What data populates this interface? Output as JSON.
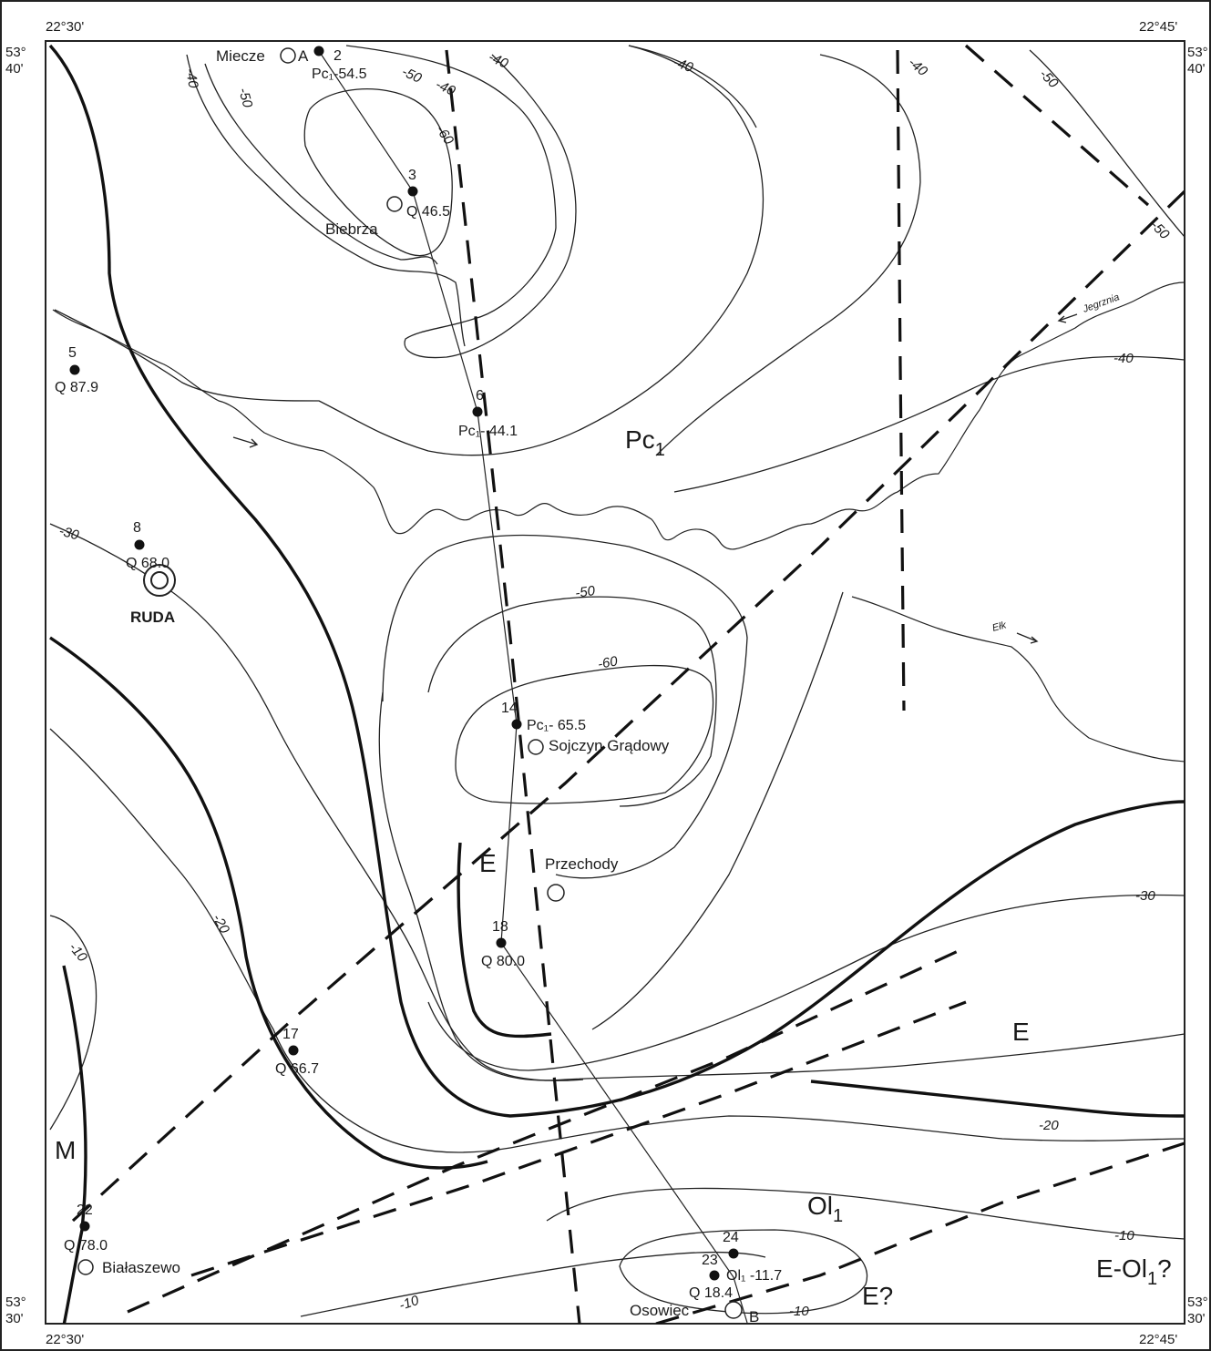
{
  "coords": {
    "top_left_lon": "22°30'",
    "top_right_lon": "22°45'",
    "bottom_left_lon": "22°30'",
    "bottom_right_lon": "22°45'",
    "top_lat_deg": "53°",
    "top_lat_min": "40'",
    "bottom_lat_deg": "53°",
    "bottom_lat_min": "30'"
  },
  "places": {
    "miecze": "Miecze",
    "biebrza": "Biebrza",
    "ruda": "RUDA",
    "sojczyn": "Sojczyn Grądowy",
    "przechody": "Przechody",
    "bialaszewo": "Białaszewo",
    "osowiec": "Osowiec"
  },
  "section_ends": {
    "a": "A",
    "b": "B"
  },
  "boreholes": [
    {
      "num": "2",
      "value": "Pc₁-54.5"
    },
    {
      "num": "3",
      "value": "Q 46.5"
    },
    {
      "num": "5",
      "value": "Q 87.9"
    },
    {
      "num": "6",
      "value": "Pc₁- 44.1"
    },
    {
      "num": "8",
      "value": "Q 68.0"
    },
    {
      "num": "14",
      "value": "Pc₁- 65.5"
    },
    {
      "num": "17",
      "value": "Q 66.7"
    },
    {
      "num": "18",
      "value": "Q 80.0"
    },
    {
      "num": "22",
      "value": "Q 78.0"
    },
    {
      "num": "23",
      "value": "Q 18.4"
    },
    {
      "num": "24",
      "value": "Ol₁ -11.7"
    }
  ],
  "contour_labels": {
    "c40_left": "-40",
    "c50_left": "-50",
    "c50_top": "-50",
    "c40_top": "-40",
    "c60_top": "-60",
    "c40_a": "-40",
    "c40_b": "-40",
    "c40_c": "-40",
    "c50_ne1": "-50",
    "c50_ne2": "-50",
    "c40_east": "-40",
    "c30_west": "-30",
    "c50_mid": "-50",
    "c60_mid": "-60",
    "c30_east": "-30",
    "c20_west": "-20",
    "c10_west": "-10",
    "c20_east": "-20",
    "c10_east": "-10",
    "c10_sw": "-10",
    "c10_s": "-10"
  },
  "units": {
    "pc1_main": "Pc",
    "pc1_sub": "1",
    "e_mid": "E",
    "e_east": "E",
    "ol1_main": "Ol",
    "ol1_sub": "1",
    "m": "M",
    "e_q": "E?",
    "e_ol1_main": "E-Ol",
    "e_ol1_sub": "1",
    "e_ol1_q": "?"
  },
  "rivers": {
    "jegrznia": "Jegrznia",
    "elk": "Ełk"
  }
}
